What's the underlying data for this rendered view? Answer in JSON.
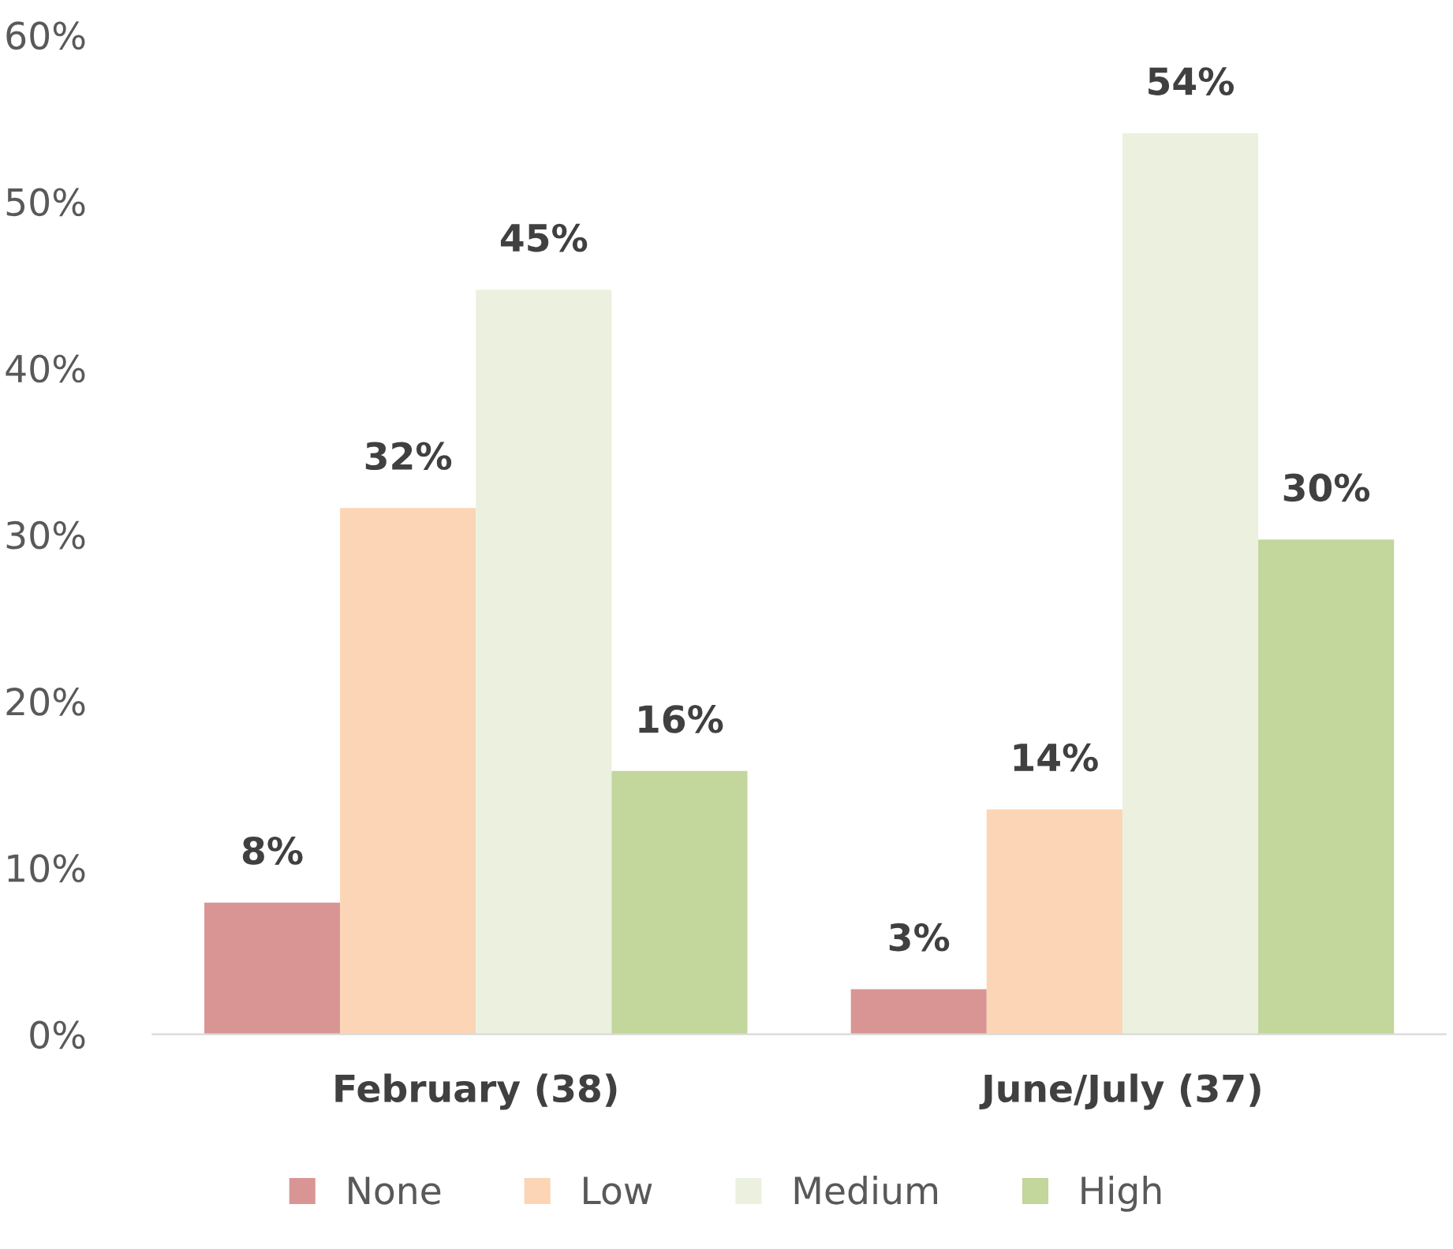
{
  "chart_data": {
    "type": "bar",
    "categories": [
      "February (38)",
      "June/July (37)"
    ],
    "series": [
      {
        "name": "None",
        "color": "#d99594",
        "values": [
          7.9,
          2.7
        ],
        "value_labels": [
          "8%",
          "3%"
        ]
      },
      {
        "name": "Low",
        "color": "#fbd5b5",
        "values": [
          31.6,
          13.5
        ],
        "value_labels": [
          "32%",
          "14%"
        ]
      },
      {
        "name": "Medium",
        "color": "#ebf1de",
        "values": [
          44.7,
          54.1
        ],
        "value_labels": [
          "45%",
          "54%"
        ]
      },
      {
        "name": "High",
        "color": "#c3d69b",
        "values": [
          15.8,
          29.7
        ],
        "value_labels": [
          "16%",
          "30%"
        ]
      }
    ],
    "ylim": [
      0,
      60
    ],
    "yticks": [
      {
        "value": 0,
        "label": "0%"
      },
      {
        "value": 10,
        "label": "10%"
      },
      {
        "value": 20,
        "label": "20%"
      },
      {
        "value": 30,
        "label": "30%"
      },
      {
        "value": 40,
        "label": "40%"
      },
      {
        "value": 50,
        "label": "50%"
      },
      {
        "value": 60,
        "label": "60%"
      }
    ],
    "grid": false,
    "legend": "bottom"
  }
}
